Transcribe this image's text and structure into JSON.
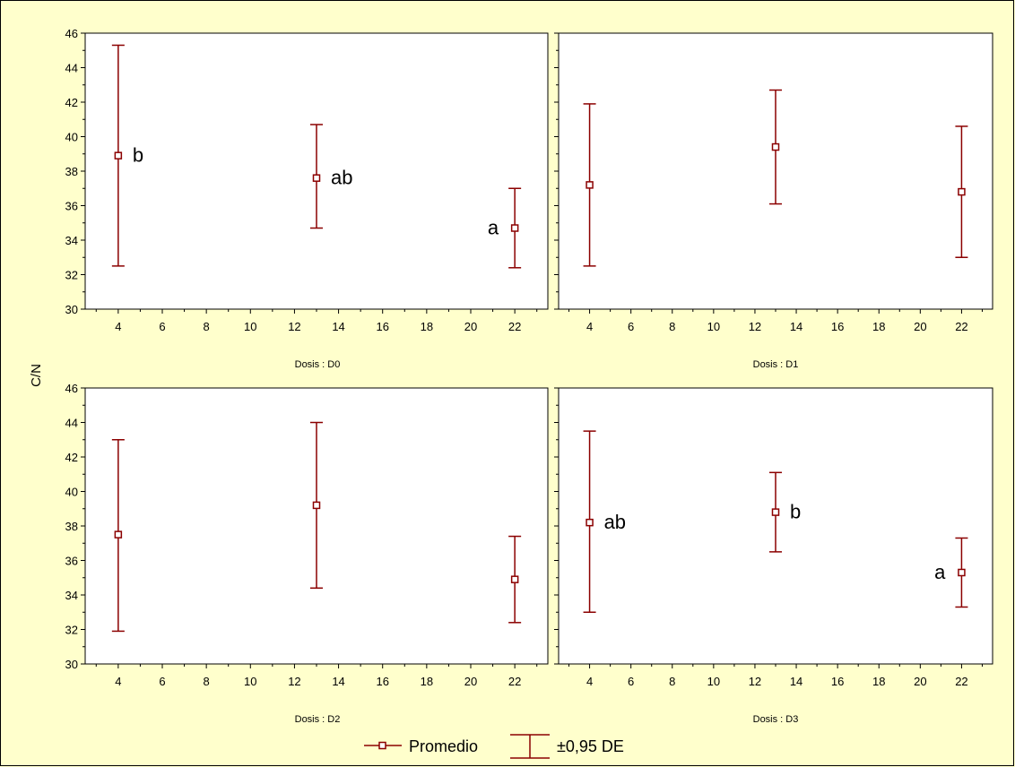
{
  "chart_data": {
    "type": "scatter",
    "kind": "error-bar panel plot",
    "ylabel": "C/N",
    "ylim": [
      30,
      46
    ],
    "y_ticks": [
      30,
      32,
      34,
      36,
      38,
      40,
      42,
      44,
      46
    ],
    "xlim": [
      2.5,
      23.5
    ],
    "x_ticks": [
      4,
      6,
      8,
      10,
      12,
      14,
      16,
      18,
      20,
      22
    ],
    "grid": false,
    "legend": {
      "position": "bottom-center",
      "mean_label": "Promedio",
      "error_label": "±0,95 DE"
    },
    "colors": {
      "series": "#8b0000",
      "background": "#ffffcc",
      "plot": "#ffffff"
    },
    "panels": [
      {
        "label": "Dosis : D0",
        "points": [
          {
            "x": 4,
            "mean": 38.9,
            "lower": 32.5,
            "upper": 45.3,
            "letter": "b",
            "letter_side": "right"
          },
          {
            "x": 13,
            "mean": 37.6,
            "lower": 34.7,
            "upper": 40.7,
            "letter": "ab",
            "letter_side": "right"
          },
          {
            "x": 22,
            "mean": 34.7,
            "lower": 32.4,
            "upper": 37.0,
            "letter": "a",
            "letter_side": "left"
          }
        ]
      },
      {
        "label": "Dosis : D1",
        "points": [
          {
            "x": 4,
            "mean": 37.2,
            "lower": 32.5,
            "upper": 41.9,
            "letter": "",
            "letter_side": "right"
          },
          {
            "x": 13,
            "mean": 39.4,
            "lower": 36.1,
            "upper": 42.7,
            "letter": "",
            "letter_side": "right"
          },
          {
            "x": 22,
            "mean": 36.8,
            "lower": 33.0,
            "upper": 40.6,
            "letter": "",
            "letter_side": "right"
          }
        ]
      },
      {
        "label": "Dosis : D2",
        "points": [
          {
            "x": 4,
            "mean": 37.5,
            "lower": 31.9,
            "upper": 43.0,
            "letter": "",
            "letter_side": "right"
          },
          {
            "x": 13,
            "mean": 39.2,
            "lower": 34.4,
            "upper": 44.0,
            "letter": "",
            "letter_side": "right"
          },
          {
            "x": 22,
            "mean": 34.9,
            "lower": 32.4,
            "upper": 37.4,
            "letter": "",
            "letter_side": "right"
          }
        ]
      },
      {
        "label": "Dosis : D3",
        "points": [
          {
            "x": 4,
            "mean": 38.2,
            "lower": 33.0,
            "upper": 43.5,
            "letter": "ab",
            "letter_side": "right"
          },
          {
            "x": 13,
            "mean": 38.8,
            "lower": 36.5,
            "upper": 41.1,
            "letter": "b",
            "letter_side": "right"
          },
          {
            "x": 22,
            "mean": 35.3,
            "lower": 33.3,
            "upper": 37.3,
            "letter": "a",
            "letter_side": "left"
          }
        ]
      }
    ]
  }
}
